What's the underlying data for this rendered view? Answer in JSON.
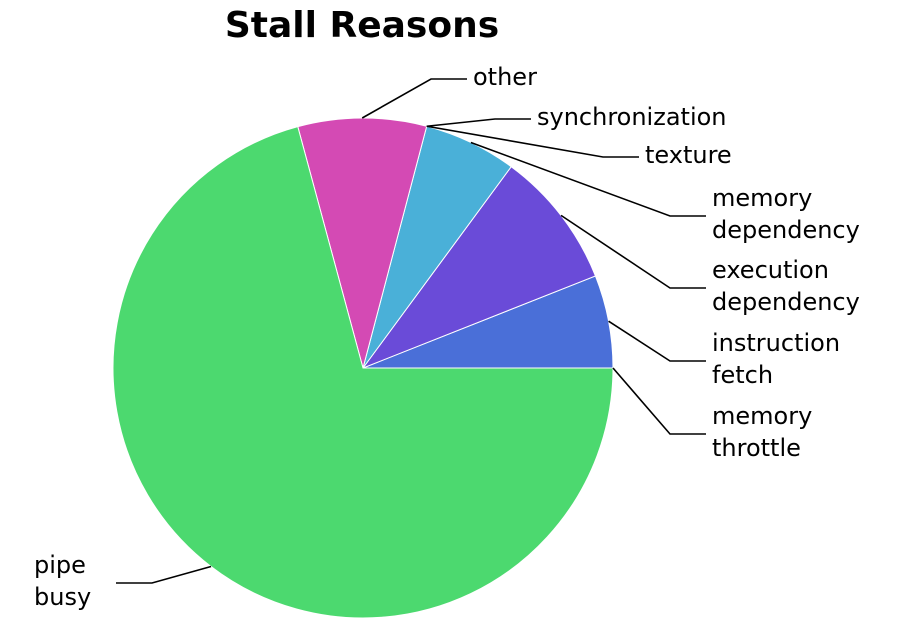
{
  "chart_data": {
    "type": "pie",
    "title": "Stall Reasons",
    "slices": [
      {
        "label": "memory throttle",
        "lines": [
          "memory",
          "throttle"
        ],
        "value": 0.0,
        "color": "#ffffff"
      },
      {
        "label": "instruction fetch",
        "lines": [
          "instruction",
          "fetch"
        ],
        "value": 6.0,
        "color": "#4a6fd8"
      },
      {
        "label": "execution dependency",
        "lines": [
          "execution",
          "dependency"
        ],
        "value": 8.9,
        "color": "#6a4bd8"
      },
      {
        "label": "memory dependency",
        "lines": [
          "memory",
          "dependency"
        ],
        "value": 6.0,
        "color": "#4ab0d8"
      },
      {
        "label": "texture",
        "lines": [
          "texture"
        ],
        "value": 0.0,
        "color": "#ffffff"
      },
      {
        "label": "synchronization",
        "lines": [
          "synchronization"
        ],
        "value": 0.0,
        "color": "#ffffff"
      },
      {
        "label": "other",
        "lines": [
          "other"
        ],
        "value": 8.3,
        "color": "#d44ab4"
      },
      {
        "label": "pipe busy",
        "lines": [
          "pipe",
          "busy"
        ],
        "value": 70.8,
        "color": "#4cd96f"
      }
    ]
  }
}
